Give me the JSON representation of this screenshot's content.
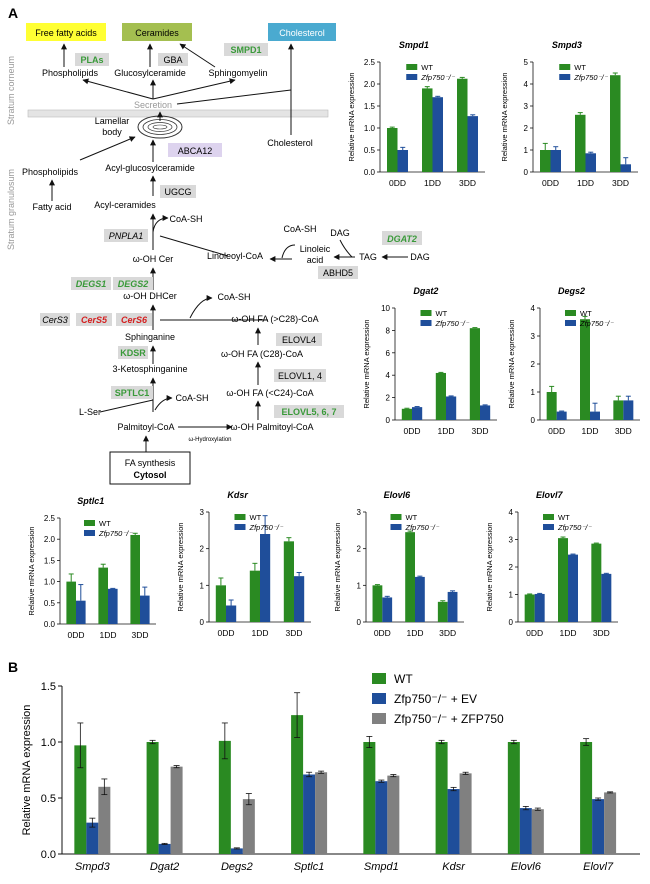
{
  "panel_a_label": "A",
  "panel_b_label": "B",
  "pathway": {
    "layer_upper": "Stratum corneum",
    "layer_lower": "Stratum granulosum",
    "colors": {
      "green": "#3a9a3a",
      "red": "#d42020",
      "gray_box": "#d9d9d9"
    },
    "nodes": {
      "ffa": "Free fatty acids",
      "ceramides": "Ceramides",
      "cholesterol_top": "Cholesterol",
      "plas": "PLAs",
      "gba": "GBA",
      "smpd1": "SMPD1",
      "phospholipids_top": "Phospholipids",
      "glucosylceramide": "Glucosylceramide",
      "sphingomyelin": "Sphingomyelin",
      "secretion": "Secretion",
      "lamellar1": "Lamellar",
      "lamellar2": "body",
      "cholesterol_side": "Cholesterol",
      "phospholipids_low": "Phospholipids",
      "fatty_acid": "Fatty acid",
      "abca12": "ABCA12",
      "acyl_glucosylceramide": "Acyl-glucosylceramide",
      "ugcg": "UGCG",
      "acyl_ceramides": "Acyl-ceramides",
      "coash1": "CoA-SH",
      "pnpla1": "PNPLA1",
      "coash2": "CoA-SH",
      "dag1": "DAG",
      "dgat2": "DGAT2",
      "linoleoyl": "Linoleoyl-CoA",
      "linoleic1": "Linoleic",
      "linoleic2": "acid",
      "tag": "TAG",
      "dag2": "DAG",
      "abhd5": "ABHD5",
      "wohcer": "ω-OH Cer",
      "degs1": "DEGS1",
      "degs2": "DEGS2",
      "wohdhcer": "ω-OH DHCer",
      "coash3": "CoA-SH",
      "cers3": "CerS3",
      "cers5": "CerS5",
      "cers6": "CerS6",
      "sphinganine": "Sphinganine",
      "fa_c28plus": "ω-OH FA (>C28)-CoA",
      "elovl4": "ELOVL4",
      "kdsr": "KDSR",
      "fa_c28": "ω-OH FA (C28)-CoA",
      "ketosphinganine": "3-Ketosphinganine",
      "elovl14": "ELOVL1, 4",
      "sptlc1": "SPTLC1",
      "fa_c24": "ω-OH FA (<C24)-CoA",
      "lser": "L-Ser",
      "coash4": "CoA-SH",
      "elovl567": "ELOVL5, 6, 7",
      "palmitoyl": "Palmitoyl-CoA",
      "woh_palmitoyl": "ω-OH Palmitoyl-CoA",
      "whydrox": "ω-Hydroxylation",
      "fa_synth": "FA synthesis",
      "cytosol": "Cytosol"
    }
  },
  "chart_data": [
    {
      "type": "bar",
      "title": "Smpd1",
      "ylabel": "Relative mRNA expression",
      "categories": [
        "0DD",
        "1DD",
        "3DD"
      ],
      "ylim": [
        0,
        2.5
      ],
      "yticks": [
        0,
        0.5,
        1.0,
        1.5,
        2.0,
        2.5
      ],
      "legend": [
        "WT",
        "Zfp750⁻/⁻"
      ],
      "series": [
        {
          "name": "WT",
          "values": [
            1.0,
            1.9,
            2.12
          ],
          "errors": [
            0.02,
            0.04,
            0.03
          ]
        },
        {
          "name": "Zfp750⁻/⁻",
          "values": [
            0.5,
            1.7,
            1.27
          ],
          "errors": [
            0.06,
            0.02,
            0.03
          ]
        }
      ]
    },
    {
      "type": "bar",
      "title": "Smpd3",
      "ylabel": "Relative mRNA expression",
      "categories": [
        "0DD",
        "1DD",
        "3DD"
      ],
      "ylim": [
        0,
        5
      ],
      "yticks": [
        0,
        1,
        2,
        3,
        4,
        5
      ],
      "legend": [
        "WT",
        "Zfp750⁻/⁻"
      ],
      "series": [
        {
          "name": "WT",
          "values": [
            1.0,
            2.6,
            4.4
          ],
          "errors": [
            0.3,
            0.1,
            0.1
          ]
        },
        {
          "name": "Zfp750⁻/⁻",
          "values": [
            1.0,
            0.85,
            0.35
          ],
          "errors": [
            0.15,
            0.05,
            0.3
          ]
        }
      ]
    },
    {
      "type": "bar",
      "title": "Dgat2",
      "ylabel": "Relative mRNA expression",
      "categories": [
        "0DD",
        "1DD",
        "3DD"
      ],
      "ylim": [
        0,
        10
      ],
      "yticks": [
        0,
        2,
        4,
        6,
        8,
        10
      ],
      "legend": [
        "WT",
        "Zfp750⁻/⁻"
      ],
      "series": [
        {
          "name": "WT",
          "values": [
            1.0,
            4.2,
            8.2
          ],
          "errors": [
            0.05,
            0.05,
            0.05
          ]
        },
        {
          "name": "Zfp750⁻/⁻",
          "values": [
            1.15,
            2.1,
            1.3
          ],
          "errors": [
            0.05,
            0.05,
            0.05
          ]
        }
      ]
    },
    {
      "type": "bar",
      "title": "Degs2",
      "ylabel": "Relative mRNA expression",
      "categories": [
        "0DD",
        "1DD",
        "3DD"
      ],
      "ylim": [
        0,
        4
      ],
      "yticks": [
        0,
        1,
        2,
        3,
        4
      ],
      "legend": [
        "WT",
        "Zfp750⁻/⁻"
      ],
      "series": [
        {
          "name": "WT",
          "values": [
            1.0,
            3.6,
            0.7
          ],
          "errors": [
            0.2,
            0.1,
            0.15
          ]
        },
        {
          "name": "Zfp750⁻/⁻",
          "values": [
            0.3,
            0.3,
            0.7
          ],
          "errors": [
            0.02,
            0.3,
            0.15
          ]
        }
      ]
    },
    {
      "type": "bar",
      "title": "Sptlc1",
      "ylabel": "Relative mRNA expression",
      "categories": [
        "0DD",
        "1DD",
        "3DD"
      ],
      "ylim": [
        0,
        2.5
      ],
      "yticks": [
        0,
        0.5,
        1.0,
        1.5,
        2.0,
        2.5
      ],
      "legend": [
        "WT",
        "Zfp750⁻/⁻"
      ],
      "series": [
        {
          "name": "WT",
          "values": [
            1.0,
            1.33,
            2.1
          ],
          "errors": [
            0.18,
            0.08,
            0.04
          ]
        },
        {
          "name": "Zfp750⁻/⁻",
          "values": [
            0.55,
            0.83,
            0.67
          ],
          "errors": [
            0.38,
            0.01,
            0.2
          ]
        }
      ]
    },
    {
      "type": "bar",
      "title": "Kdsr",
      "ylabel": "Relative mRNA expression",
      "categories": [
        "0DD",
        "1DD",
        "3DD"
      ],
      "ylim": [
        0,
        3
      ],
      "yticks": [
        0,
        1,
        2,
        3
      ],
      "legend": [
        "WT",
        "Zfp750⁻/⁻"
      ],
      "series": [
        {
          "name": "WT",
          "values": [
            1.0,
            1.4,
            2.2
          ],
          "errors": [
            0.2,
            0.2,
            0.1
          ]
        },
        {
          "name": "Zfp750⁻/⁻",
          "values": [
            0.45,
            2.4,
            1.25
          ],
          "errors": [
            0.15,
            0.5,
            0.1
          ]
        }
      ]
    },
    {
      "type": "bar",
      "title": "Elovl6",
      "ylabel": "Relative mRNA expression",
      "categories": [
        "0DD",
        "1DD",
        "3DD"
      ],
      "ylim": [
        0,
        3
      ],
      "yticks": [
        0,
        1,
        2,
        3
      ],
      "legend": [
        "WT",
        "Zfp750⁻/⁻"
      ],
      "series": [
        {
          "name": "WT",
          "values": [
            1.0,
            2.45,
            0.55
          ],
          "errors": [
            0.02,
            0.03,
            0.03
          ]
        },
        {
          "name": "Zfp750⁻/⁻",
          "values": [
            0.67,
            1.23,
            0.82
          ],
          "errors": [
            0.03,
            0.02,
            0.03
          ]
        }
      ]
    },
    {
      "type": "bar",
      "title": "Elovl7",
      "ylabel": "Relative mRNA expression",
      "categories": [
        "0DD",
        "1DD",
        "3DD"
      ],
      "ylim": [
        0,
        4
      ],
      "yticks": [
        0,
        1,
        2,
        3,
        4
      ],
      "legend": [
        "WT",
        "Zfp750⁻/⁻"
      ],
      "series": [
        {
          "name": "WT",
          "values": [
            1.0,
            3.05,
            2.85
          ],
          "errors": [
            0.02,
            0.04,
            0.02
          ]
        },
        {
          "name": "Zfp750⁻/⁻",
          "values": [
            1.02,
            2.45,
            1.75
          ],
          "errors": [
            0.02,
            0.02,
            0.02
          ]
        }
      ]
    },
    {
      "type": "bar",
      "title": "",
      "ylabel": "Relative mRNA expression",
      "categories": [
        "Smpd3",
        "Dgat2",
        "Degs2",
        "Sptlc1",
        "Smpd1",
        "Kdsr",
        "Elovl6",
        "Elovl7"
      ],
      "ylim": [
        0,
        1.5
      ],
      "yticks": [
        0.0,
        0.5,
        1.0,
        1.5
      ],
      "legend_position": "top-right",
      "series": [
        {
          "name": "WT",
          "values": [
            0.97,
            1.0,
            1.01,
            1.24,
            1.0,
            1.0,
            1.0,
            1.0
          ],
          "errors": [
            0.2,
            0.015,
            0.16,
            0.2,
            0.05,
            0.015,
            0.015,
            0.03
          ]
        },
        {
          "name": "Zfp750⁻/⁻ + EV",
          "values": [
            0.28,
            0.09,
            0.05,
            0.71,
            0.65,
            0.58,
            0.41,
            0.49
          ],
          "errors": [
            0.04,
            0.005,
            0.005,
            0.02,
            0.01,
            0.015,
            0.015,
            0.01
          ]
        },
        {
          "name": "Zfp750⁻/⁻ + ZFP750",
          "values": [
            0.6,
            0.78,
            0.49,
            0.73,
            0.7,
            0.72,
            0.4,
            0.55
          ],
          "errors": [
            0.07,
            0.01,
            0.05,
            0.01,
            0.01,
            0.01,
            0.01,
            0.005
          ]
        }
      ]
    }
  ],
  "palette": {
    "wt": "#2a8a22",
    "ko": "#1f4e9a",
    "zfp": "#808080",
    "axis": "#111111"
  }
}
